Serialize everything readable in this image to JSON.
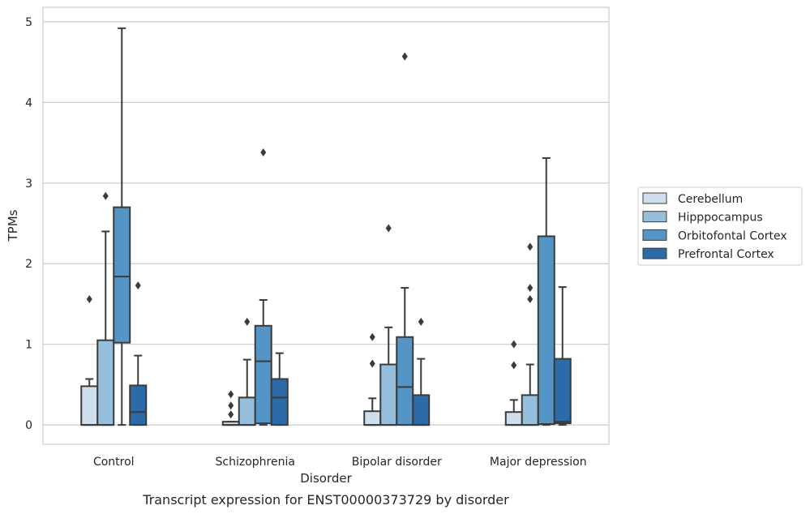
{
  "chart_data": {
    "type": "box",
    "title": "",
    "caption": "Transcript expression for ENST00000373729 by disorder",
    "xlabel": "Disorder",
    "ylabel": "TPMs",
    "ylim": [
      -0.24,
      5.18
    ],
    "yticks": [
      0,
      1,
      2,
      3,
      4,
      5
    ],
    "grid": "horizontal",
    "legend_position": "right",
    "categories": [
      "Control",
      "Schizophrenia",
      "Bipolar disorder",
      "Major depression"
    ],
    "series": [
      {
        "name": "Cerebellum",
        "color": "#d0dfee",
        "boxes": [
          {
            "min": 0,
            "q1": 0,
            "median": 0,
            "q3": 0.48,
            "max": 0.57,
            "outliers": [
              1.56
            ]
          },
          {
            "min": 0,
            "q1": 0,
            "median": 0,
            "q3": 0.04,
            "max": 0.04,
            "outliers": [
              0.13,
              0.24,
              0.38
            ]
          },
          {
            "min": 0,
            "q1": 0,
            "median": 0,
            "q3": 0.17,
            "max": 0.33,
            "outliers": [
              0.76,
              1.09
            ]
          },
          {
            "min": 0,
            "q1": 0,
            "median": 0,
            "q3": 0.16,
            "max": 0.31,
            "outliers": [
              0.74,
              1.0
            ]
          }
        ]
      },
      {
        "name": "Hipppocampus",
        "color": "#95bfdd",
        "boxes": [
          {
            "min": 0,
            "q1": 0,
            "median": 0,
            "q3": 1.05,
            "max": 2.4,
            "outliers": [
              2.84
            ]
          },
          {
            "min": 0,
            "q1": 0,
            "median": 0,
            "q3": 0.34,
            "max": 0.81,
            "outliers": [
              1.28
            ]
          },
          {
            "min": 0,
            "q1": 0,
            "median": 0,
            "q3": 0.75,
            "max": 1.21,
            "outliers": [
              2.44
            ]
          },
          {
            "min": 0,
            "q1": 0,
            "median": 0,
            "q3": 0.37,
            "max": 0.75,
            "outliers": [
              1.56,
              1.7,
              2.21
            ]
          }
        ]
      },
      {
        "name": "Orbitofontal Cortex",
        "color": "#5495c6",
        "boxes": [
          {
            "min": 0,
            "q1": 1.02,
            "median": 1.84,
            "q3": 2.7,
            "max": 4.92,
            "outliers": []
          },
          {
            "min": 0,
            "q1": 0.02,
            "median": 0.79,
            "q3": 1.23,
            "max": 1.55,
            "outliers": [
              3.38
            ]
          },
          {
            "min": 0,
            "q1": 0,
            "median": 0.47,
            "q3": 1.09,
            "max": 1.7,
            "outliers": [
              4.57
            ]
          },
          {
            "min": 0,
            "q1": 0.01,
            "median": 0.01,
            "q3": 2.34,
            "max": 3.31,
            "outliers": []
          }
        ]
      },
      {
        "name": "Prefrontal Cortex",
        "color": "#2c6ba8",
        "boxes": [
          {
            "min": 0,
            "q1": 0,
            "median": 0.16,
            "q3": 0.49,
            "max": 0.86,
            "outliers": [
              1.73
            ]
          },
          {
            "min": 0,
            "q1": 0,
            "median": 0.34,
            "q3": 0.57,
            "max": 0.89,
            "outliers": []
          },
          {
            "min": 0,
            "q1": 0,
            "median": 0,
            "q3": 0.37,
            "max": 0.82,
            "outliers": [
              1.28
            ]
          },
          {
            "min": 0,
            "q1": 0.02,
            "median": 0.04,
            "q3": 0.82,
            "max": 1.71,
            "outliers": []
          }
        ]
      }
    ]
  }
}
